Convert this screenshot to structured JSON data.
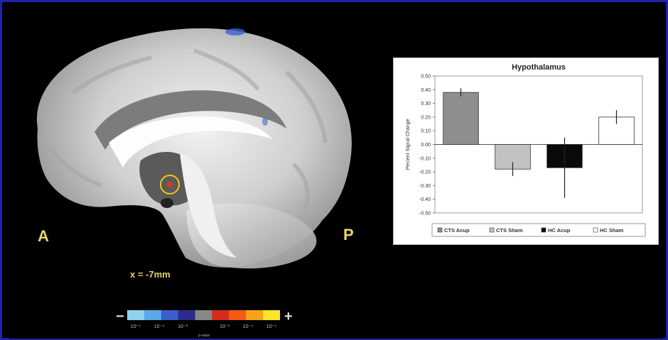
{
  "figure": {
    "anterior_label": "A",
    "posterior_label": "P",
    "slice_label": "x = -7mm",
    "scale": {
      "minus": "−",
      "plus": "+",
      "ticks": [
        "10⁻⁵",
        "10⁻⁴",
        "10⁻³",
        "10⁻³",
        "10⁻⁴",
        "10⁻⁵"
      ],
      "p_label": "p-value",
      "colors": [
        "#8fd3f0",
        "#5aa9e6",
        "#3a60c9",
        "#2c2c8c",
        "#888888",
        "#d42c1c",
        "#f25a18",
        "#f8a21c",
        "#fbe52a"
      ]
    },
    "activation_colors": {
      "center": "#d83a1a",
      "ring": "#f5c518"
    }
  },
  "chart_data": {
    "type": "bar",
    "title": "Hypothalamus",
    "ylabel": "Percent Signal Change",
    "xlabel": "",
    "ylim": [
      -0.5,
      0.5
    ],
    "yticks": [
      "0.50",
      "0.40",
      "0.30",
      "0.20",
      "0.10",
      "0.00",
      "-0.10",
      "-0.20",
      "-0.30",
      "-0.40",
      "-0.50"
    ],
    "grid": false,
    "legend_position": "bottom",
    "categories": [
      "CTS Acup",
      "CTS Sham",
      "HC Acup",
      "HC Sham"
    ],
    "values": [
      0.38,
      -0.18,
      -0.17,
      0.2
    ],
    "errors": [
      0.03,
      0.05,
      0.22,
      0.05
    ],
    "colors": [
      "#8e8e8e",
      "#c2c2c2",
      "#0a0a0a",
      "#ffffff"
    ]
  }
}
